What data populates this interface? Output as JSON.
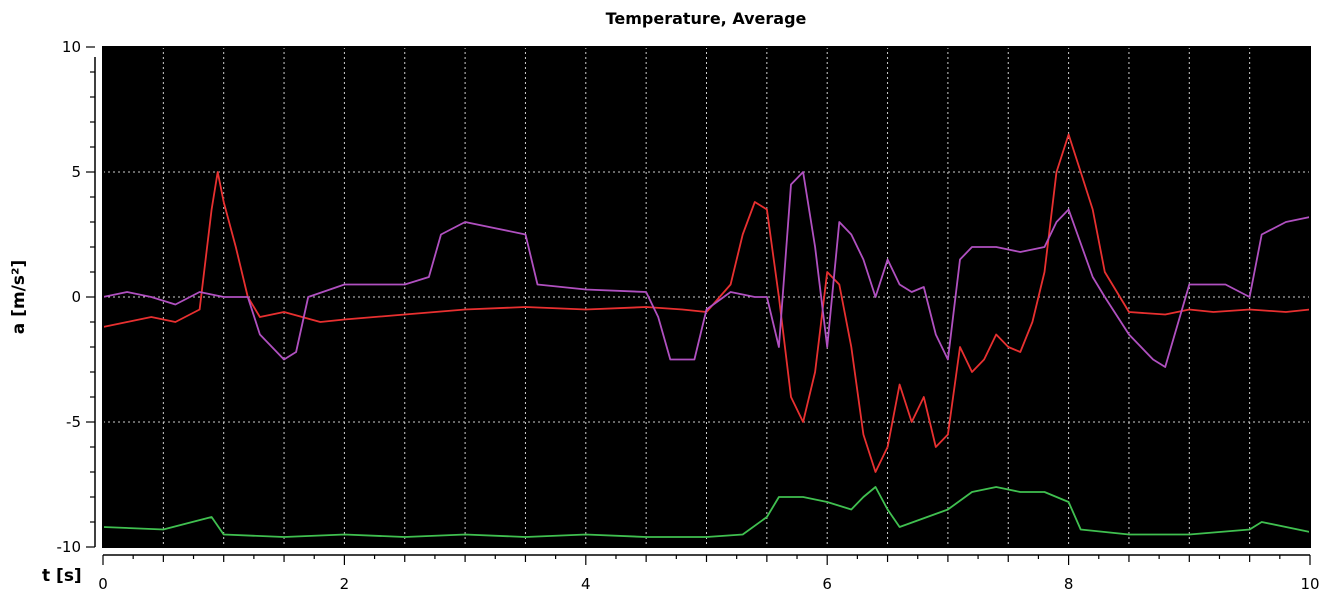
{
  "chart_data": {
    "type": "line",
    "title": "Temperature, Average",
    "xlabel": "t [s]",
    "ylabel": "a [m/s²]",
    "xlim": [
      0,
      10
    ],
    "ylim": [
      -10,
      10
    ],
    "x_ticks": [
      0,
      2,
      4,
      6,
      8,
      10
    ],
    "x_tick_labels": [
      "0",
      "2",
      "4",
      "6",
      "8",
      "10"
    ],
    "y_ticks": [
      10,
      5,
      0,
      -5,
      -10
    ],
    "y_tick_labels": [
      "10",
      "5",
      "0",
      "-5",
      "-10"
    ],
    "grid": true,
    "background": "#000000",
    "series": [
      {
        "color": "#e83030",
        "x": [
          0,
          0.2,
          0.4,
          0.6,
          0.8,
          0.9,
          0.95,
          1.0,
          1.1,
          1.2,
          1.3,
          1.5,
          1.8,
          2.0,
          2.5,
          3.0,
          3.5,
          4.0,
          4.5,
          4.8,
          5.0,
          5.2,
          5.3,
          5.4,
          5.5,
          5.6,
          5.7,
          5.8,
          5.9,
          6.0,
          6.1,
          6.2,
          6.3,
          6.4,
          6.5,
          6.6,
          6.7,
          6.8,
          6.9,
          7.0,
          7.1,
          7.2,
          7.3,
          7.4,
          7.5,
          7.6,
          7.7,
          7.8,
          7.9,
          8.0,
          8.1,
          8.2,
          8.3,
          8.5,
          8.8,
          9.0,
          9.2,
          9.5,
          9.8,
          10.0
        ],
        "y": [
          -1.2,
          -1.0,
          -0.8,
          -1.0,
          -0.5,
          3.5,
          5.0,
          3.8,
          2.0,
          0.0,
          -0.8,
          -0.6,
          -1.0,
          -0.9,
          -0.7,
          -0.5,
          -0.4,
          -0.5,
          -0.4,
          -0.5,
          -0.6,
          0.5,
          2.5,
          3.8,
          3.5,
          0.0,
          -4.0,
          -5.0,
          -3.0,
          1.0,
          0.5,
          -2.0,
          -5.5,
          -7.0,
          -6.0,
          -3.5,
          -5.0,
          -4.0,
          -6.0,
          -5.5,
          -2.0,
          -3.0,
          -2.5,
          -1.5,
          -2.0,
          -2.2,
          -1.0,
          1.0,
          5.0,
          6.5,
          5.0,
          3.5,
          1.0,
          -0.6,
          -0.7,
          -0.5,
          -0.6,
          -0.5,
          -0.6,
          -0.5
        ]
      },
      {
        "color": "#b050c0",
        "x": [
          0,
          0.2,
          0.4,
          0.6,
          0.8,
          1.0,
          1.2,
          1.3,
          1.5,
          1.6,
          1.7,
          2.0,
          2.5,
          2.7,
          2.8,
          3.0,
          3.2,
          3.5,
          3.6,
          4.0,
          4.5,
          4.6,
          4.7,
          4.9,
          5.0,
          5.2,
          5.4,
          5.5,
          5.6,
          5.7,
          5.8,
          5.9,
          6.0,
          6.1,
          6.2,
          6.3,
          6.4,
          6.5,
          6.6,
          6.7,
          6.8,
          6.9,
          7.0,
          7.1,
          7.2,
          7.4,
          7.6,
          7.8,
          7.9,
          8.0,
          8.2,
          8.3,
          8.5,
          8.7,
          8.8,
          9.0,
          9.3,
          9.5,
          9.6,
          9.8,
          10.0
        ],
        "y": [
          0.0,
          0.2,
          0.0,
          -0.3,
          0.2,
          0.0,
          0.0,
          -1.5,
          -2.5,
          -2.2,
          0.0,
          0.5,
          0.5,
          0.8,
          2.5,
          3.0,
          2.8,
          2.5,
          0.5,
          0.3,
          0.2,
          -0.8,
          -2.5,
          -2.5,
          -0.5,
          0.2,
          0.0,
          0.0,
          -2.0,
          4.5,
          5.0,
          2.0,
          -2.0,
          3.0,
          2.5,
          1.5,
          0.0,
          1.5,
          0.5,
          0.2,
          0.4,
          -1.5,
          -2.5,
          1.5,
          2.0,
          2.0,
          1.8,
          2.0,
          3.0,
          3.5,
          0.8,
          0.0,
          -1.5,
          -2.5,
          -2.8,
          0.5,
          0.5,
          0.0,
          2.5,
          3.0,
          3.2
        ]
      },
      {
        "color": "#40c050",
        "x": [
          0,
          0.5,
          0.9,
          1.0,
          1.5,
          2.0,
          2.5,
          3.0,
          3.5,
          4.0,
          4.5,
          5.0,
          5.3,
          5.5,
          5.6,
          5.8,
          6.0,
          6.2,
          6.3,
          6.4,
          6.5,
          6.6,
          7.0,
          7.2,
          7.4,
          7.6,
          7.8,
          8.0,
          8.1,
          8.5,
          9.0,
          9.5,
          9.6,
          10.0
        ],
        "y": [
          -9.2,
          -9.3,
          -8.8,
          -9.5,
          -9.6,
          -9.5,
          -9.6,
          -9.5,
          -9.6,
          -9.5,
          -9.6,
          -9.6,
          -9.5,
          -8.8,
          -8.0,
          -8.0,
          -8.2,
          -8.5,
          -8.0,
          -7.6,
          -8.5,
          -9.2,
          -8.5,
          -7.8,
          -7.6,
          -7.8,
          -7.8,
          -8.2,
          -9.3,
          -9.5,
          -9.5,
          -9.3,
          -9.0,
          -9.4
        ]
      }
    ]
  }
}
